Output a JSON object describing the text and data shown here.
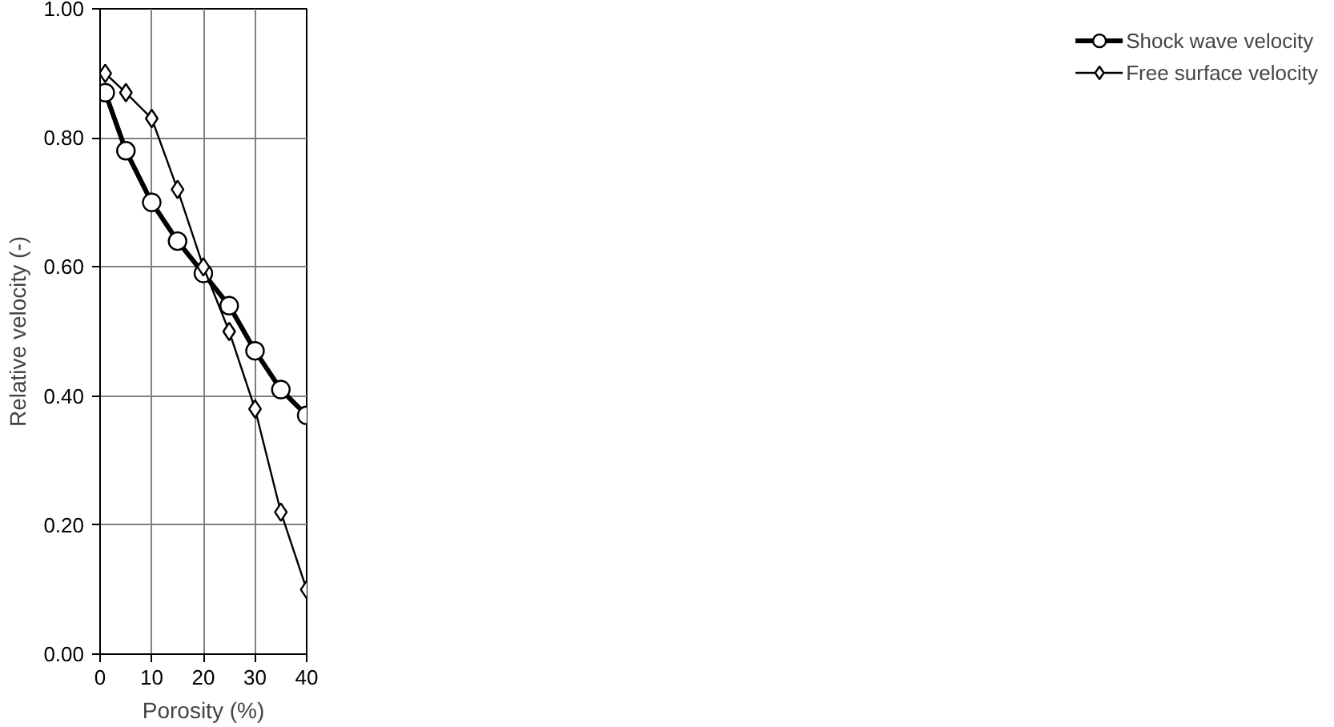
{
  "chart_data": {
    "type": "line",
    "xlabel": "Porosity (%)",
    "ylabel": "Relative velocity (-)",
    "x": [
      1,
      5,
      10,
      15,
      20,
      25,
      30,
      35,
      40
    ],
    "series": [
      {
        "name": "Shock wave velocity",
        "color": "#000000",
        "marker": "circle",
        "values": [
          0.87,
          0.78,
          0.7,
          0.64,
          0.59,
          0.54,
          0.47,
          0.41,
          0.37
        ]
      },
      {
        "name": "Free surface velocity",
        "color": "#000000",
        "marker": "diamond",
        "values": [
          0.9,
          0.87,
          0.83,
          0.72,
          0.6,
          0.5,
          0.38,
          0.22,
          0.1
        ]
      }
    ],
    "xlim": [
      0,
      40
    ],
    "xticks": [
      0,
      10,
      20,
      30,
      40
    ],
    "ylim": [
      0,
      1.0
    ],
    "yticks": [
      {
        "value": 0,
        "label": "0.00"
      },
      {
        "value": 0.2,
        "label": "0.20"
      },
      {
        "value": 0.4,
        "label": "0.40"
      },
      {
        "value": 0.6,
        "label": "0.60"
      },
      {
        "value": 0.8,
        "label": "0.80"
      },
      {
        "value": 1.0,
        "label": "1.00"
      }
    ],
    "grid": true,
    "legend": "right",
    "line_style": "solid"
  }
}
